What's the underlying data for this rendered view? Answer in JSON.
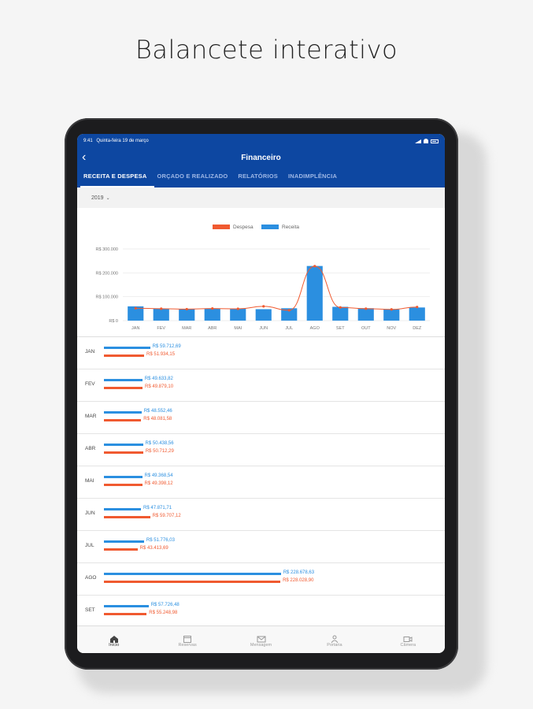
{
  "caption": "Balancete interativo",
  "status": {
    "time": "9:41",
    "date": "Quinta-feira 19 de março"
  },
  "header": {
    "title": "Financeiro"
  },
  "tabs": [
    {
      "label": "RECEITA E DESPESA",
      "active": true
    },
    {
      "label": "ORÇADO E REALIZADO",
      "active": false
    },
    {
      "label": "RELATÓRIOS",
      "active": false
    },
    {
      "label": "INADIMPLÊNCIA",
      "active": false
    }
  ],
  "year_selector": {
    "value": "2019"
  },
  "colors": {
    "primary": "#0d47a1",
    "receita": "#2b8fe0",
    "despesa": "#f05a30"
  },
  "chart_data": {
    "type": "bar",
    "legend": [
      "Despesa",
      "Receita"
    ],
    "legend_placement": "top-center",
    "categories": [
      "JAN",
      "FEV",
      "MAR",
      "ABR",
      "MAI",
      "JUN",
      "JUL",
      "AGO",
      "SET",
      "OUT",
      "NOV",
      "DEZ"
    ],
    "series": [
      {
        "name": "Receita",
        "kind": "bar",
        "values": [
          59712.69,
          49633.82,
          48552.46,
          50438.56,
          49368.54,
          47871.71,
          51776.03,
          228678.63,
          57726.48,
          52000,
          47000,
          55000
        ]
      },
      {
        "name": "Despesa",
        "kind": "line",
        "values": [
          51934.15,
          49879.1,
          48081.58,
          50712.29,
          49398.12,
          59707.12,
          43413.69,
          228028.9,
          55248.98,
          50000,
          47000,
          57000
        ]
      }
    ],
    "yticks": [
      "R$ 0",
      "R$ 100.000",
      "R$ 200.000",
      "R$ 300.000"
    ],
    "ylim": [
      0,
      300000
    ],
    "grid": true
  },
  "rows": [
    {
      "month": "JAN",
      "receita": 59712.69,
      "despesa": 51934.15,
      "receita_label": "R$ 59.712,69",
      "despesa_label": "R$ 51.934,15"
    },
    {
      "month": "FEV",
      "receita": 49633.82,
      "despesa": 49879.1,
      "receita_label": "R$ 49.633,82",
      "despesa_label": "R$ 49.879,10"
    },
    {
      "month": "MAR",
      "receita": 48552.46,
      "despesa": 48081.58,
      "receita_label": "R$ 48.552,46",
      "despesa_label": "R$ 48.081,58"
    },
    {
      "month": "ABR",
      "receita": 50438.56,
      "despesa": 50712.29,
      "receita_label": "R$ 50.438,56",
      "despesa_label": "R$ 50.712,29"
    },
    {
      "month": "MAI",
      "receita": 49368.54,
      "despesa": 49398.12,
      "receita_label": "R$ 49.368,54",
      "despesa_label": "R$ 49.398,12"
    },
    {
      "month": "JUN",
      "receita": 47871.71,
      "despesa": 59707.12,
      "receita_label": "R$ 47.871,71",
      "despesa_label": "R$ 59.707,12"
    },
    {
      "month": "JUL",
      "receita": 51776.03,
      "despesa": 43413.69,
      "receita_label": "R$ 51.776,03",
      "despesa_label": "R$ 43.413,69"
    },
    {
      "month": "AGO",
      "receita": 228678.63,
      "despesa": 228028.9,
      "receita_label": "R$ 228.678,63",
      "despesa_label": "R$ 228.028,90"
    },
    {
      "month": "SET",
      "receita": 57726.48,
      "despesa": 55248.98,
      "receita_label": "R$ 57.726,48",
      "despesa_label": "R$ 55.248,98"
    }
  ],
  "bottom_nav": [
    {
      "label": "Início",
      "icon": "home-icon",
      "active": true
    },
    {
      "label": "Reservas",
      "icon": "calendar-icon",
      "active": false
    },
    {
      "label": "Mensagem",
      "icon": "envelope-icon",
      "active": false
    },
    {
      "label": "Portaria",
      "icon": "doorman-icon",
      "active": false
    },
    {
      "label": "Câmera",
      "icon": "camera-icon",
      "active": false
    }
  ]
}
